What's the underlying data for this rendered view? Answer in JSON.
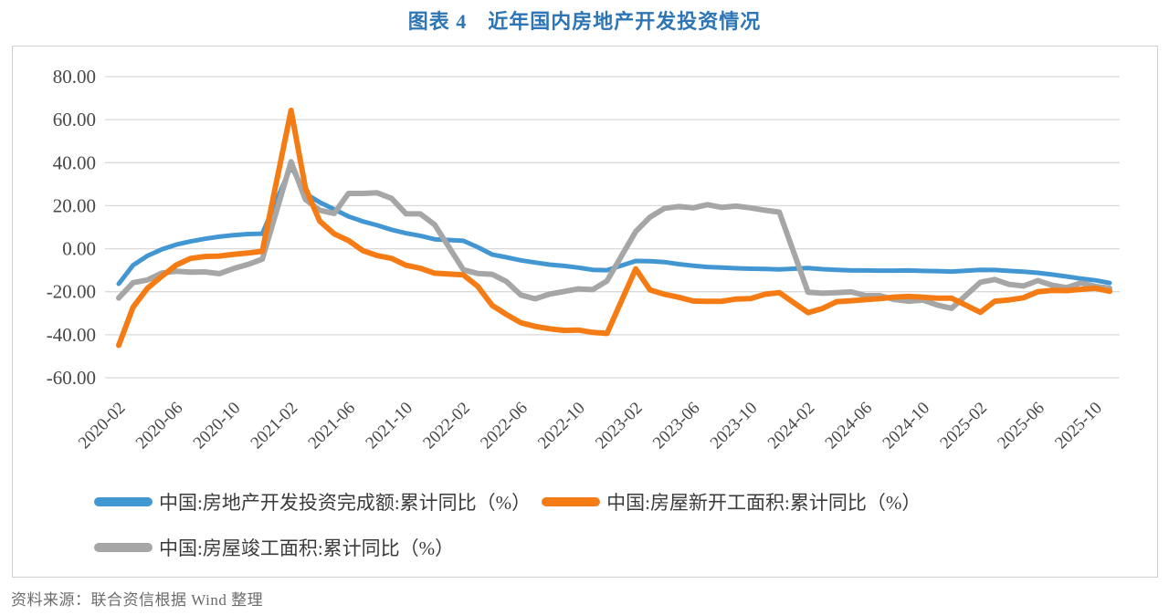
{
  "title": "图表 4　近年国内房地产开发投资情况",
  "source": "资料来源：联合资信根据 Wind 整理",
  "colors": {
    "title": "#2E75B6",
    "axis_text": "#474747",
    "grid": "#D9D9D9",
    "frame": "#CFCFCF",
    "legend_text": "#3B3B3B",
    "source_text": "#6B6B6B",
    "background": "#FFFFFF"
  },
  "chart_data": {
    "type": "line",
    "title": "图表 4　近年国内房地产开发投资情况",
    "grid": "horizontal",
    "legend_position": "bottom-left",
    "y_axis": {
      "min": -60,
      "max": 80,
      "step": 20,
      "tick_labels": [
        "80.00",
        "60.00",
        "40.00",
        "20.00",
        "0.00",
        "-20.00",
        "-40.00",
        "-60.00"
      ]
    },
    "x_axis": {
      "start": "2020-02",
      "end": "2025-11",
      "tick_labels": [
        "2020-02",
        "2020-06",
        "2020-10",
        "2021-02",
        "2021-06",
        "2021-10",
        "2022-02",
        "2022-06",
        "2022-10",
        "2023-02",
        "2023-06",
        "2023-10",
        "2024-02",
        "2024-06",
        "2024-10",
        "2025-02",
        "2025-06",
        "2025-10"
      ]
    },
    "series": [
      {
        "name": "中国:房地产开发投资完成额:累计同比（%）",
        "color": "#4297D3",
        "points": [
          [
            "2020-02",
            -16.3
          ],
          [
            "2020-03",
            -7.7
          ],
          [
            "2020-04",
            -3.3
          ],
          [
            "2020-05",
            -0.3
          ],
          [
            "2020-06",
            1.9
          ],
          [
            "2020-07",
            3.4
          ],
          [
            "2020-08",
            4.6
          ],
          [
            "2020-09",
            5.6
          ],
          [
            "2020-10",
            6.3
          ],
          [
            "2020-11",
            6.8
          ],
          [
            "2020-12",
            7.0
          ],
          [
            "2021-02",
            38.3
          ],
          [
            "2021-03",
            25.6
          ],
          [
            "2021-04",
            21.6
          ],
          [
            "2021-05",
            18.3
          ],
          [
            "2021-06",
            15.0
          ],
          [
            "2021-07",
            12.7
          ],
          [
            "2021-08",
            10.9
          ],
          [
            "2021-09",
            8.8
          ],
          [
            "2021-10",
            7.2
          ],
          [
            "2021-11",
            6.0
          ],
          [
            "2021-12",
            4.4
          ],
          [
            "2022-02",
            3.7
          ],
          [
            "2022-03",
            0.7
          ],
          [
            "2022-04",
            -2.7
          ],
          [
            "2022-05",
            -4.0
          ],
          [
            "2022-06",
            -5.4
          ],
          [
            "2022-07",
            -6.4
          ],
          [
            "2022-08",
            -7.4
          ],
          [
            "2022-09",
            -8.0
          ],
          [
            "2022-10",
            -8.8
          ],
          [
            "2022-11",
            -9.8
          ],
          [
            "2022-12",
            -10.0
          ],
          [
            "2023-02",
            -5.7
          ],
          [
            "2023-03",
            -5.8
          ],
          [
            "2023-04",
            -6.2
          ],
          [
            "2023-05",
            -7.2
          ],
          [
            "2023-06",
            -7.9
          ],
          [
            "2023-07",
            -8.5
          ],
          [
            "2023-08",
            -8.8
          ],
          [
            "2023-09",
            -9.1
          ],
          [
            "2023-10",
            -9.3
          ],
          [
            "2023-11",
            -9.4
          ],
          [
            "2023-12",
            -9.6
          ],
          [
            "2024-02",
            -9.0
          ],
          [
            "2024-03",
            -9.5
          ],
          [
            "2024-04",
            -9.8
          ],
          [
            "2024-05",
            -10.1
          ],
          [
            "2024-06",
            -10.1
          ],
          [
            "2024-07",
            -10.2
          ],
          [
            "2024-08",
            -10.2
          ],
          [
            "2024-09",
            -10.1
          ],
          [
            "2024-10",
            -10.3
          ],
          [
            "2024-11",
            -10.4
          ],
          [
            "2024-12",
            -10.6
          ],
          [
            "2025-02",
            -9.8
          ],
          [
            "2025-03",
            -9.9
          ],
          [
            "2025-04",
            -10.3
          ],
          [
            "2025-05",
            -10.7
          ],
          [
            "2025-06",
            -11.2
          ],
          [
            "2025-07",
            -12.0
          ],
          [
            "2025-08",
            -12.9
          ],
          [
            "2025-09",
            -13.9
          ],
          [
            "2025-10",
            -14.7
          ],
          [
            "2025-11",
            -15.9
          ]
        ]
      },
      {
        "name": "中国:房屋新开工面积:累计同比（%）",
        "color": "#F57C14",
        "points": [
          [
            "2020-02",
            -44.9
          ],
          [
            "2020-03",
            -27.2
          ],
          [
            "2020-04",
            -18.4
          ],
          [
            "2020-05",
            -12.8
          ],
          [
            "2020-06",
            -7.6
          ],
          [
            "2020-07",
            -4.5
          ],
          [
            "2020-08",
            -3.6
          ],
          [
            "2020-09",
            -3.4
          ],
          [
            "2020-10",
            -2.6
          ],
          [
            "2020-11",
            -2.0
          ],
          [
            "2020-12",
            -1.2
          ],
          [
            "2021-02",
            64.3
          ],
          [
            "2021-03",
            28.2
          ],
          [
            "2021-04",
            12.8
          ],
          [
            "2021-05",
            6.9
          ],
          [
            "2021-06",
            3.8
          ],
          [
            "2021-07",
            -0.9
          ],
          [
            "2021-08",
            -3.2
          ],
          [
            "2021-09",
            -4.5
          ],
          [
            "2021-10",
            -7.7
          ],
          [
            "2021-11",
            -9.1
          ],
          [
            "2021-12",
            -11.4
          ],
          [
            "2022-02",
            -12.2
          ],
          [
            "2022-03",
            -17.5
          ],
          [
            "2022-04",
            -26.3
          ],
          [
            "2022-05",
            -30.6
          ],
          [
            "2022-06",
            -34.4
          ],
          [
            "2022-07",
            -36.1
          ],
          [
            "2022-08",
            -37.2
          ],
          [
            "2022-09",
            -38.0
          ],
          [
            "2022-10",
            -37.8
          ],
          [
            "2022-11",
            -38.9
          ],
          [
            "2022-12",
            -39.4
          ],
          [
            "2023-02",
            -9.4
          ],
          [
            "2023-03",
            -19.2
          ],
          [
            "2023-04",
            -21.2
          ],
          [
            "2023-05",
            -22.6
          ],
          [
            "2023-06",
            -24.3
          ],
          [
            "2023-07",
            -24.5
          ],
          [
            "2023-08",
            -24.4
          ],
          [
            "2023-09",
            -23.4
          ],
          [
            "2023-10",
            -23.2
          ],
          [
            "2023-11",
            -21.2
          ],
          [
            "2023-12",
            -20.4
          ],
          [
            "2024-02",
            -29.7
          ],
          [
            "2024-03",
            -27.8
          ],
          [
            "2024-04",
            -24.6
          ],
          [
            "2024-05",
            -24.2
          ],
          [
            "2024-06",
            -23.7
          ],
          [
            "2024-07",
            -23.2
          ],
          [
            "2024-08",
            -22.5
          ],
          [
            "2024-09",
            -22.2
          ],
          [
            "2024-10",
            -22.6
          ],
          [
            "2024-11",
            -23.0
          ],
          [
            "2024-12",
            -23.0
          ],
          [
            "2025-02",
            -29.6
          ],
          [
            "2025-03",
            -24.4
          ],
          [
            "2025-04",
            -23.8
          ],
          [
            "2025-05",
            -22.8
          ],
          [
            "2025-06",
            -20.0
          ],
          [
            "2025-07",
            -19.4
          ],
          [
            "2025-08",
            -19.5
          ],
          [
            "2025-09",
            -18.9
          ],
          [
            "2025-10",
            -18.4
          ],
          [
            "2025-11",
            -19.8
          ]
        ]
      },
      {
        "name": "中国:房屋竣工面积:累计同比（%）",
        "color": "#A6A6A6",
        "points": [
          [
            "2020-02",
            -22.9
          ],
          [
            "2020-03",
            -15.8
          ],
          [
            "2020-04",
            -14.5
          ],
          [
            "2020-05",
            -11.3
          ],
          [
            "2020-06",
            -10.5
          ],
          [
            "2020-07",
            -10.9
          ],
          [
            "2020-08",
            -10.8
          ],
          [
            "2020-09",
            -11.6
          ],
          [
            "2020-10",
            -9.2
          ],
          [
            "2020-11",
            -7.3
          ],
          [
            "2020-12",
            -4.9
          ],
          [
            "2021-02",
            40.4
          ],
          [
            "2021-03",
            22.9
          ],
          [
            "2021-04",
            17.9
          ],
          [
            "2021-05",
            16.4
          ],
          [
            "2021-06",
            25.7
          ],
          [
            "2021-07",
            25.7
          ],
          [
            "2021-08",
            26.0
          ],
          [
            "2021-09",
            23.4
          ],
          [
            "2021-10",
            16.3
          ],
          [
            "2021-11",
            16.2
          ],
          [
            "2021-12",
            11.2
          ],
          [
            "2022-02",
            -9.8
          ],
          [
            "2022-03",
            -11.5
          ],
          [
            "2022-04",
            -11.9
          ],
          [
            "2022-05",
            -15.3
          ],
          [
            "2022-06",
            -21.5
          ],
          [
            "2022-07",
            -23.3
          ],
          [
            "2022-08",
            -21.1
          ],
          [
            "2022-09",
            -19.9
          ],
          [
            "2022-10",
            -18.7
          ],
          [
            "2022-11",
            -19.0
          ],
          [
            "2022-12",
            -15.0
          ],
          [
            "2023-02",
            8.0
          ],
          [
            "2023-03",
            14.7
          ],
          [
            "2023-04",
            18.8
          ],
          [
            "2023-05",
            19.6
          ],
          [
            "2023-06",
            19.0
          ],
          [
            "2023-07",
            20.5
          ],
          [
            "2023-08",
            19.2
          ],
          [
            "2023-09",
            19.8
          ],
          [
            "2023-10",
            19.0
          ],
          [
            "2023-11",
            17.9
          ],
          [
            "2023-12",
            17.0
          ],
          [
            "2024-02",
            -20.2
          ],
          [
            "2024-03",
            -20.7
          ],
          [
            "2024-04",
            -20.4
          ],
          [
            "2024-05",
            -20.1
          ],
          [
            "2024-06",
            -21.8
          ],
          [
            "2024-07",
            -21.8
          ],
          [
            "2024-08",
            -23.6
          ],
          [
            "2024-09",
            -24.4
          ],
          [
            "2024-10",
            -23.9
          ],
          [
            "2024-11",
            -26.2
          ],
          [
            "2024-12",
            -27.7
          ],
          [
            "2025-02",
            -15.6
          ],
          [
            "2025-03",
            -14.3
          ],
          [
            "2025-04",
            -16.6
          ],
          [
            "2025-05",
            -17.3
          ],
          [
            "2025-06",
            -14.8
          ],
          [
            "2025-07",
            -17.0
          ],
          [
            "2025-08",
            -18.1
          ],
          [
            "2025-09",
            -15.9
          ],
          [
            "2025-10",
            -17.5
          ],
          [
            "2025-11",
            -18.4
          ]
        ]
      }
    ]
  }
}
